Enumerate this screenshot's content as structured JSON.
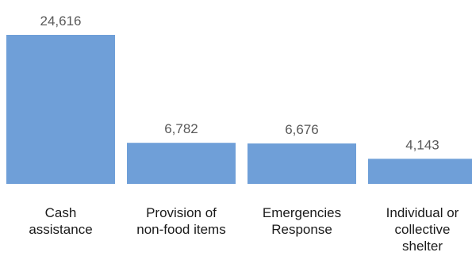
{
  "chart_data": {
    "type": "bar",
    "categories": [
      [
        "Cash",
        "assistance"
      ],
      [
        "Provision of",
        "non-food items"
      ],
      [
        "Emergencies",
        "Response"
      ],
      [
        "Individual or",
        "collective",
        "shelter"
      ]
    ],
    "values": [
      24616,
      6782,
      6676,
      4143
    ],
    "value_labels": [
      "24,616",
      "6,782",
      "6,676",
      "4,143"
    ],
    "ylim": [
      0,
      24616
    ],
    "bar_color": "#6f9fd8",
    "grid": false,
    "legend": "none"
  }
}
